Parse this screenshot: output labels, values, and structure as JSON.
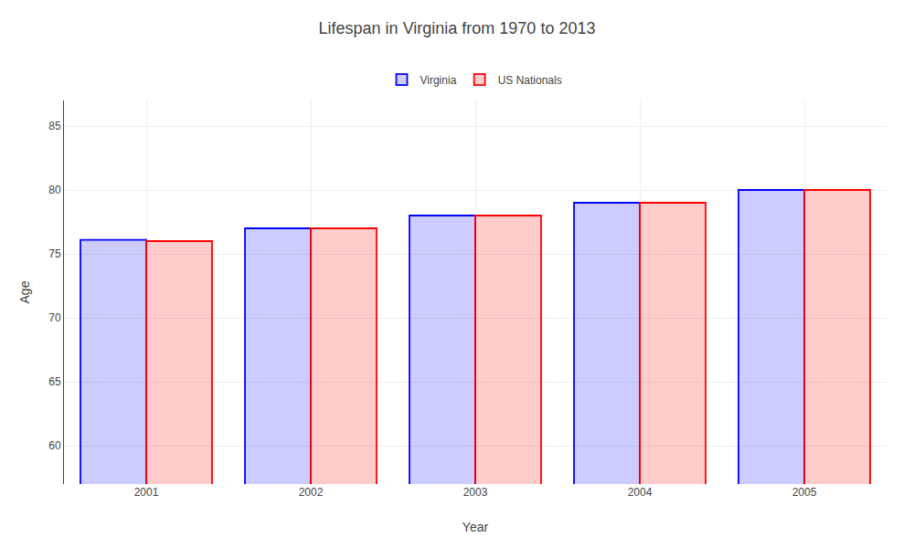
{
  "chart_data": {
    "type": "bar",
    "title": "Lifespan in Virginia from 1970 to 2013",
    "x_label": "Year",
    "y_label": "Age",
    "categories": [
      "2001",
      "2002",
      "2003",
      "2004",
      "2005"
    ],
    "series": [
      {
        "name": "Virginia",
        "color": "#0000ff",
        "values": [
          76.1,
          77.0,
          78.0,
          79.0,
          80.0
        ]
      },
      {
        "name": "US Nationals",
        "color": "#ff0000",
        "values": [
          76.0,
          77.0,
          78.0,
          79.0,
          80.0
        ]
      }
    ],
    "ylim": [
      57,
      87
    ],
    "yticks": [
      60,
      65,
      70,
      75,
      80,
      85
    ],
    "grid": true,
    "legend": "top"
  }
}
